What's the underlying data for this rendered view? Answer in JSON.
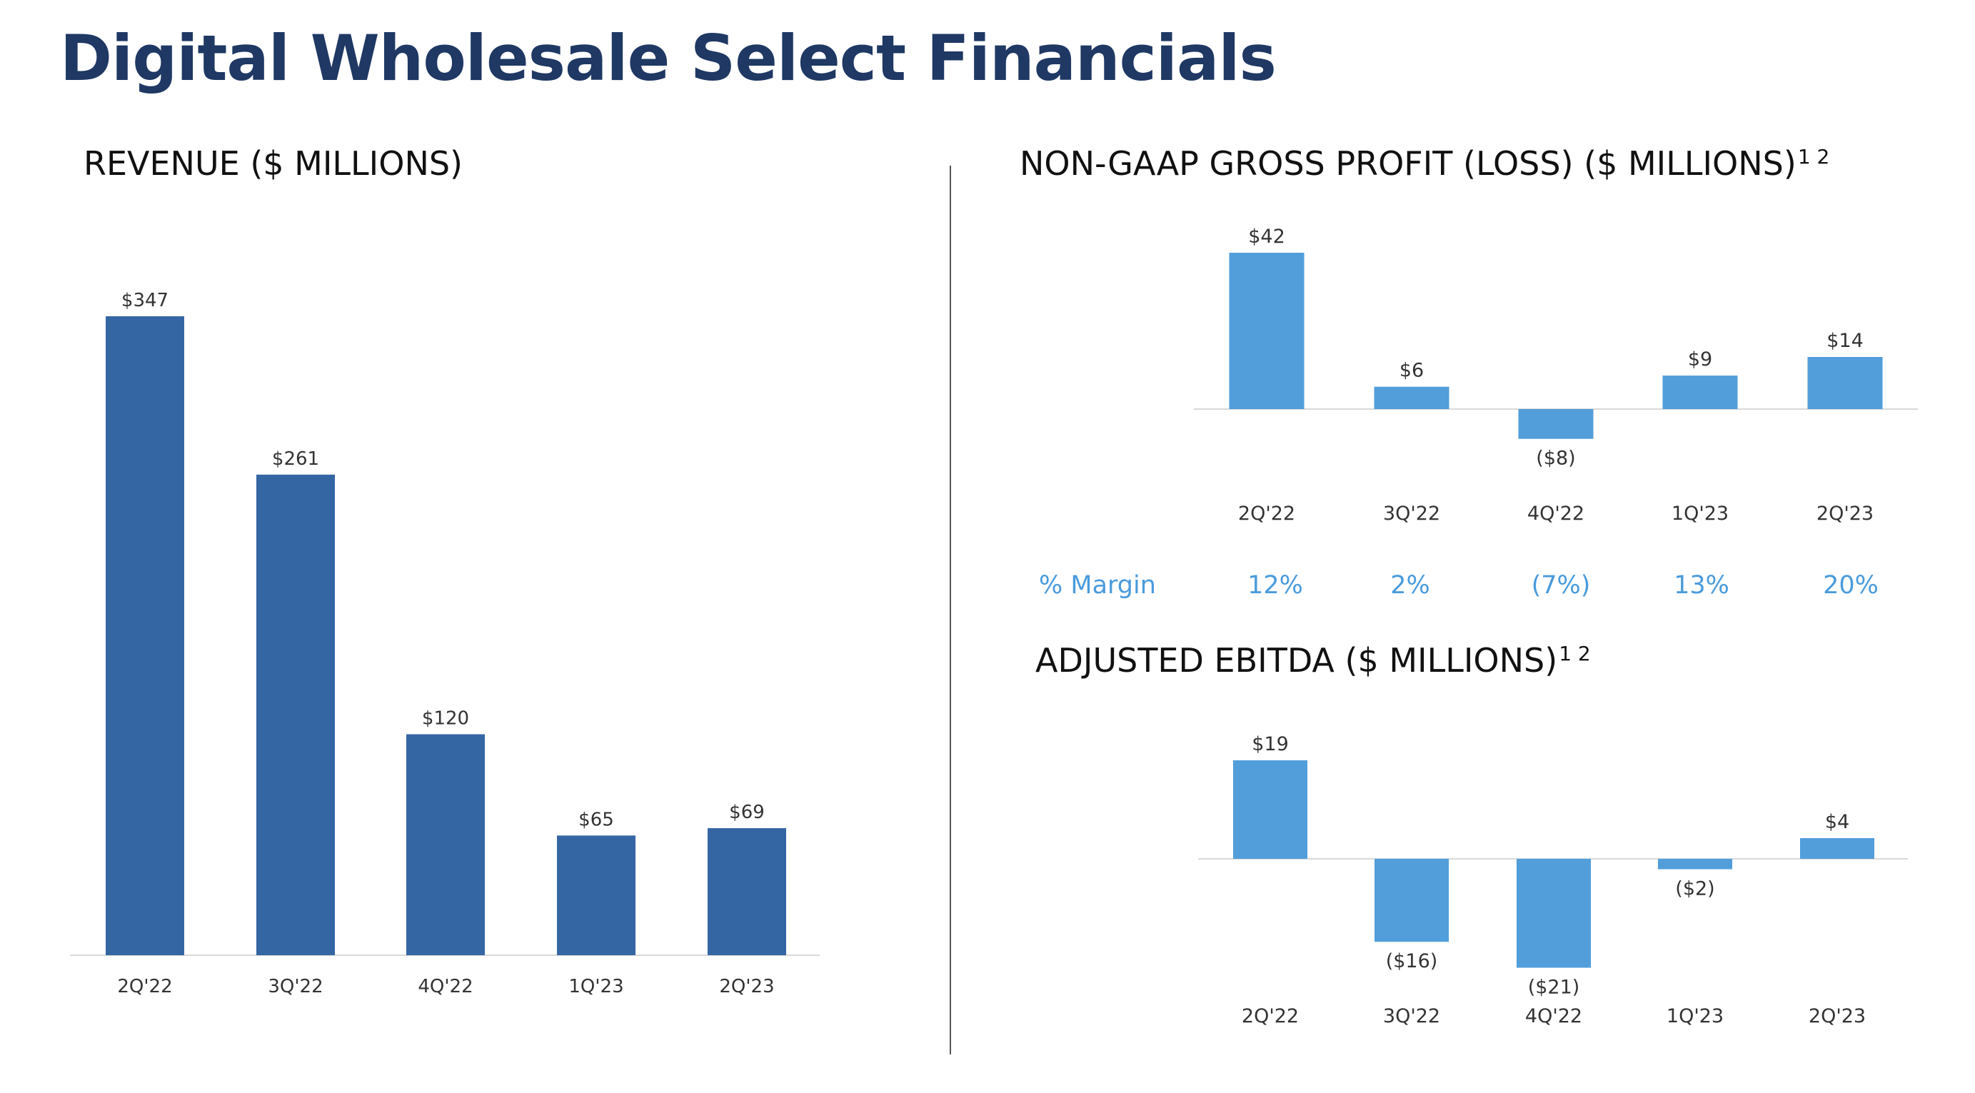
{
  "page": {
    "title": "Digital Wholesale Select Financials"
  },
  "colors": {
    "title": "#1F3864",
    "revenue_bar": "#3566A4",
    "light_bar": "#529EDB",
    "margin_text": "#4A9BDC",
    "axis_text": "#333333",
    "axis_line": "#D9D9D9"
  },
  "gross_profit_margin": {
    "label": "% Margin",
    "values": [
      "12%",
      "2%",
      "(7%)",
      "13%",
      "20%"
    ]
  },
  "chart_data": [
    {
      "id": "revenue",
      "type": "bar",
      "title": "REVENUE ($ MILLIONS)",
      "title_sup": "",
      "categories": [
        "2Q'22",
        "3Q'22",
        "4Q'22",
        "1Q'23",
        "2Q'23"
      ],
      "values": [
        347,
        261,
        120,
        65,
        69
      ],
      "data_labels": [
        "$347",
        "$261",
        "$120",
        "$65",
        "$69"
      ],
      "ylim": [
        0,
        347
      ],
      "grid": false,
      "legend": "none",
      "xlabel": "",
      "ylabel": ""
    },
    {
      "id": "gross_profit",
      "type": "bar",
      "title": "NON-GAAP GROSS PROFIT (LOSS) ($ MILLIONS)",
      "title_sup": "1 2",
      "categories": [
        "2Q'22",
        "3Q'22",
        "4Q'22",
        "1Q'23",
        "2Q'23"
      ],
      "values": [
        42,
        6,
        -8,
        9,
        14
      ],
      "data_labels": [
        "$42",
        "$6",
        "($8)",
        "$9",
        "$14"
      ],
      "ylim": [
        -8,
        42
      ],
      "grid": false,
      "legend": "none",
      "xlabel": "",
      "ylabel": ""
    },
    {
      "id": "adjusted_ebitda",
      "type": "bar",
      "title": "ADJUSTED EBITDA ($ MILLIONS)",
      "title_sup": "1 2",
      "categories": [
        "2Q'22",
        "3Q'22",
        "4Q'22",
        "1Q'23",
        "2Q'23"
      ],
      "values": [
        19,
        -16,
        -21,
        -2,
        4
      ],
      "data_labels": [
        "$19",
        "($16)",
        "($21)",
        "($2)",
        "$4"
      ],
      "ylim": [
        -21,
        19
      ],
      "grid": false,
      "legend": "none",
      "xlabel": "",
      "ylabel": ""
    }
  ]
}
